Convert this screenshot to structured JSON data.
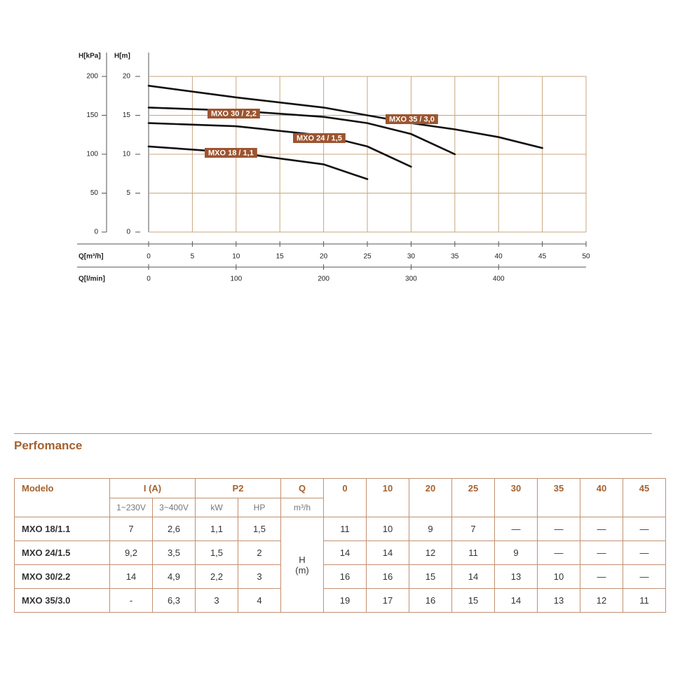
{
  "chart_data": {
    "type": "line",
    "y_label": "H[m]",
    "y2_label": "H[kPa]",
    "x_label": "Q[m³/h]",
    "x2_label": "Q[l/min]",
    "ylim": [
      0,
      20
    ],
    "yticks": [
      0,
      5,
      10,
      15,
      20
    ],
    "y2lim": [
      0,
      200
    ],
    "y2ticks": [
      0,
      50,
      100,
      150,
      200
    ],
    "xlim": [
      0,
      50
    ],
    "xticks": [
      0,
      5,
      10,
      15,
      20,
      25,
      30,
      35,
      40,
      45,
      50
    ],
    "x2lim": [
      0,
      500
    ],
    "x2ticks": [
      0,
      100,
      200,
      300,
      400
    ],
    "grid": true,
    "grid_color": "#c9a57c",
    "label_color": "#9c5530",
    "series": [
      {
        "name": "MXO 18 / 1,1",
        "color": "#111111",
        "x": [
          0,
          10,
          20,
          25
        ],
        "values": [
          11.0,
          10.2,
          8.7,
          6.8
        ]
      },
      {
        "name": "MXO 24 / 1,5",
        "color": "#111111",
        "x": [
          0,
          10,
          20,
          25,
          30
        ],
        "values": [
          14.0,
          13.6,
          12.4,
          11.0,
          8.4
        ]
      },
      {
        "name": "MXO 30 / 2,2",
        "color": "#111111",
        "x": [
          0,
          10,
          20,
          25,
          30,
          35
        ],
        "values": [
          16.0,
          15.6,
          14.8,
          14.0,
          12.6,
          10.0
        ]
      },
      {
        "name": "MXO 35 / 3,0",
        "color": "#111111",
        "x": [
          0,
          10,
          20,
          25,
          30,
          35,
          40,
          45
        ],
        "values": [
          18.8,
          17.3,
          16.0,
          15.0,
          14.0,
          13.2,
          12.2,
          10.8
        ]
      }
    ]
  },
  "section_title": "Perfomance",
  "table": {
    "header": [
      "Modelo",
      "I (A)",
      "P2",
      "Q",
      "0",
      "10",
      "20",
      "25",
      "30",
      "35",
      "40",
      "45"
    ],
    "subheader": [
      "1~230V",
      "3~400V",
      "kW",
      "HP",
      "m³/h"
    ],
    "h_label": [
      "H",
      "(m)"
    ],
    "rows": [
      [
        "MXO 18/1.1",
        "7",
        "2,6",
        "1,1",
        "1,5",
        "11",
        "10",
        "9",
        "7",
        "—",
        "—",
        "—",
        "—"
      ],
      [
        "MXO 24/1.5",
        "9,2",
        "3,5",
        "1,5",
        "2",
        "14",
        "14",
        "12",
        "11",
        "9",
        "—",
        "—",
        "—"
      ],
      [
        "MXO 30/2.2",
        "14",
        "4,9",
        "2,2",
        "3",
        "16",
        "16",
        "15",
        "14",
        "13",
        "10",
        "—",
        "—"
      ],
      [
        "MXO 35/3.0",
        "-",
        "6,3",
        "3",
        "4",
        "19",
        "17",
        "16",
        "15",
        "14",
        "13",
        "12",
        "11"
      ]
    ]
  }
}
